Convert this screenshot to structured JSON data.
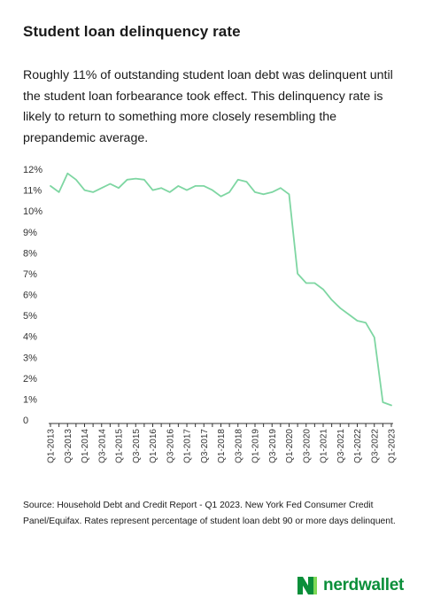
{
  "title": "Student loan delinquency rate",
  "intro": "Roughly 11% of outstanding student loan debt was delinquent until the student loan forbearance took effect. This delinquency rate is likely to return to something more closely resembling the prepandemic average.",
  "source": "Source: Household Debt and Credit Report - Q1 2023. New York Fed Consumer Credit Panel/Equifax. Rates represent percentage of student loan debt 90 or more days delinquent.",
  "brand": {
    "name": "nerdwallet",
    "icon": "nerdwallet-n-logo",
    "color": "#0b8f3a"
  },
  "colors": {
    "line": "#7ed6a2",
    "grid": "#e0e0e0"
  },
  "chart_data": {
    "type": "line",
    "title": "",
    "xlabel": "",
    "ylabel": "",
    "ylim": [
      0,
      12
    ],
    "y_ticks": [
      "0",
      "1%",
      "2%",
      "3%",
      "4%",
      "5%",
      "6%",
      "7%",
      "8%",
      "9%",
      "10%",
      "11%",
      "12%"
    ],
    "grid": false,
    "x": [
      "Q1-2013",
      "Q2-2013",
      "Q3-2013",
      "Q4-2013",
      "Q1-2014",
      "Q2-2014",
      "Q3-2014",
      "Q4-2014",
      "Q1-2015",
      "Q2-2015",
      "Q3-2015",
      "Q4-2015",
      "Q1-2016",
      "Q2-2016",
      "Q3-2016",
      "Q4-2016",
      "Q1-2017",
      "Q2-2017",
      "Q3-2017",
      "Q4-2017",
      "Q1-2018",
      "Q2-2018",
      "Q3-2018",
      "Q4-2018",
      "Q1-2019",
      "Q2-2019",
      "Q3-2019",
      "Q4-2019",
      "Q1-2020",
      "Q2-2020",
      "Q3-2020",
      "Q4-2020",
      "Q1-2021",
      "Q2-2021",
      "Q3-2021",
      "Q4-2021",
      "Q1-2022",
      "Q2-2022",
      "Q3-2022",
      "Q4-2022",
      "Q1-2023"
    ],
    "x_tick_labels": [
      "Q1-2013",
      "Q3-2013",
      "Q1-2014",
      "Q3-2014",
      "Q1-2015",
      "Q3-2015",
      "Q1-2016",
      "Q3-2016",
      "Q1-2017",
      "Q3-2017",
      "Q1-2018",
      "Q3-2018",
      "Q1-2019",
      "Q3-2019",
      "Q1-2020",
      "Q3-2020",
      "Q1-2021",
      "Q3-2021",
      "Q1-2022",
      "Q3-2022",
      "Q1-2023"
    ],
    "series": [
      {
        "values": [
          11.2,
          10.9,
          11.8,
          11.5,
          11.0,
          10.9,
          11.1,
          11.3,
          11.1,
          11.5,
          11.55,
          11.5,
          11.0,
          11.1,
          10.9,
          11.2,
          11.0,
          11.2,
          11.2,
          11.0,
          10.7,
          10.9,
          11.5,
          11.4,
          10.9,
          10.8,
          10.9,
          11.1,
          10.8,
          7.0,
          6.55,
          6.55,
          6.25,
          5.75,
          5.35,
          5.05,
          4.75,
          4.65,
          3.95,
          0.85,
          0.7
        ]
      }
    ]
  }
}
